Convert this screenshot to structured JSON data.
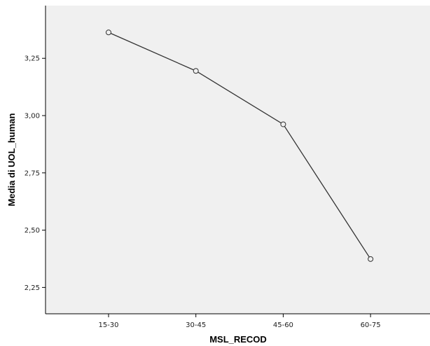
{
  "chart_data": {
    "type": "line",
    "categories": [
      "15-30",
      "30-45",
      "45-60",
      "60-75"
    ],
    "series": [
      {
        "values": [
          3.363,
          3.195,
          2.962,
          2.374
        ]
      }
    ],
    "xlabel": "MSL_RECOD",
    "ylabel": "Media di UOL_human",
    "ylim": [
      2.135,
      3.48
    ],
    "yticks": [
      "2,25",
      "2,50",
      "2,75",
      "3,00",
      "3,25"
    ],
    "ytick_values": [
      2.25,
      2.5,
      2.75,
      3.0,
      3.25
    ],
    "grid": false,
    "marker": "open-circle",
    "colors": {
      "plot_background": "#f0f0f0",
      "line": "#333333",
      "axis": "#000000"
    }
  }
}
